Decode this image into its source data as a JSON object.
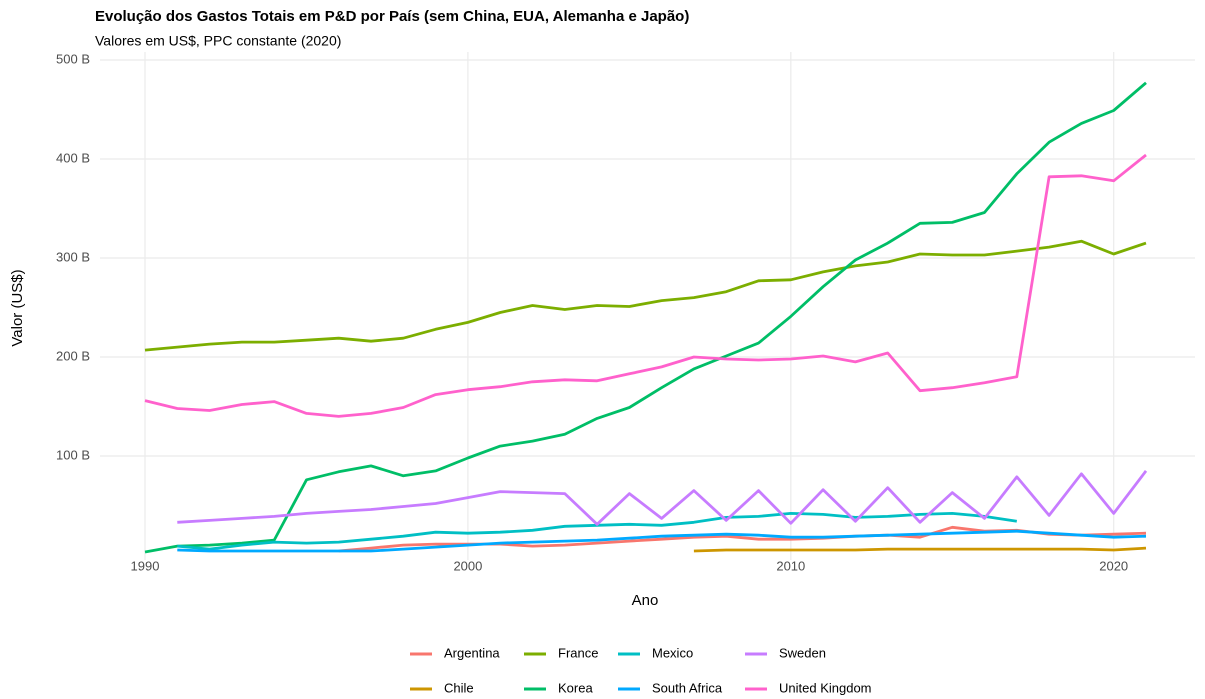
{
  "chart_data": {
    "type": "line",
    "title": "Evolução dos Gastos Totais em P&D por País (sem China, EUA, Alemanha e Japão)",
    "subtitle": "Valores em US$, PPC constante (2020)",
    "xlabel": "Ano",
    "ylabel": "Valor (US$)",
    "x": [
      1990,
      1991,
      1992,
      1993,
      1994,
      1995,
      1996,
      1997,
      1998,
      1999,
      2000,
      2001,
      2002,
      2003,
      2004,
      2005,
      2006,
      2007,
      2008,
      2009,
      2010,
      2011,
      2012,
      2013,
      2014,
      2015,
      2016,
      2017,
      2018,
      2019,
      2020,
      2021
    ],
    "xlim": [
      1990,
      2021
    ],
    "xticks": [
      1990,
      2000,
      2010,
      2020
    ],
    "ylim": [
      0,
      500
    ],
    "yticks": [
      {
        "value": 100,
        "label": "100 B"
      },
      {
        "value": 200,
        "label": "200 B"
      },
      {
        "value": 300,
        "label": "300 B"
      },
      {
        "value": 400,
        "label": "400 B"
      },
      {
        "value": 500,
        "label": "500 B"
      }
    ],
    "grid": true,
    "legend": "bottom",
    "series": [
      {
        "name": "Argentina",
        "color": "#F8766D",
        "values": [
          null,
          null,
          null,
          null,
          null,
          null,
          4,
          7,
          10,
          11,
          11,
          11,
          9,
          10,
          12,
          14,
          16,
          18,
          19,
          16,
          16,
          17,
          19,
          20,
          18,
          28,
          24,
          25,
          21,
          20,
          21,
          22
        ]
      },
      {
        "name": "Chile",
        "color": "#CD9600",
        "values": [
          null,
          null,
          null,
          null,
          null,
          null,
          null,
          null,
          null,
          null,
          null,
          null,
          null,
          null,
          null,
          null,
          null,
          4,
          5,
          5,
          5,
          5,
          5,
          6,
          6,
          6,
          6,
          6,
          6,
          6,
          5,
          7
        ]
      },
      {
        "name": "France",
        "color": "#7CAE00",
        "values": [
          207,
          210,
          213,
          215,
          215,
          217,
          219,
          216,
          219,
          228,
          235,
          245,
          252,
          248,
          252,
          251,
          257,
          260,
          266,
          277,
          278,
          286,
          292,
          296,
          304,
          303,
          303,
          307,
          311,
          317,
          304,
          315
        ]
      },
      {
        "name": "Korea",
        "color": "#00BE67",
        "values": [
          3,
          9,
          10,
          12,
          15,
          76,
          84,
          90,
          80,
          85,
          98,
          110,
          115,
          122,
          138,
          149,
          169,
          188,
          201,
          214,
          241,
          271,
          298,
          315,
          335,
          336,
          346,
          385,
          417,
          436,
          449,
          477
        ]
      },
      {
        "name": "Mexico",
        "color": "#00BFC4",
        "values": [
          null,
          9,
          6,
          10,
          13,
          12,
          13,
          16,
          19,
          23,
          22,
          23,
          25,
          29,
          30,
          31,
          30,
          33,
          38,
          39,
          42,
          41,
          38,
          39,
          41,
          42,
          39,
          34,
          null,
          null,
          null,
          null
        ]
      },
      {
        "name": "South Africa",
        "color": "#00A9FF",
        "values": [
          null,
          5,
          4,
          4,
          4,
          4,
          4,
          4,
          6,
          8,
          10,
          12,
          13,
          14,
          15,
          17,
          19,
          20,
          21,
          20,
          18,
          18,
          19,
          20,
          21,
          22,
          23,
          24,
          22,
          20,
          18,
          19
        ]
      },
      {
        "name": "Sweden",
        "color": "#C77CFF",
        "values": [
          null,
          33,
          35,
          37,
          39,
          42,
          44,
          46,
          49,
          52,
          58,
          64,
          63,
          62,
          31,
          62,
          37,
          65,
          35,
          65,
          32,
          66,
          34,
          68,
          33,
          63,
          37,
          79,
          40,
          82,
          42,
          85
        ]
      },
      {
        "name": "United Kingdom",
        "color": "#FF61CC",
        "values": [
          156,
          148,
          146,
          152,
          155,
          143,
          140,
          143,
          149,
          162,
          167,
          170,
          175,
          177,
          176,
          183,
          190,
          200,
          198,
          197,
          198,
          201,
          195,
          204,
          166,
          169,
          174,
          180,
          382,
          383,
          378,
          404
        ]
      }
    ]
  }
}
